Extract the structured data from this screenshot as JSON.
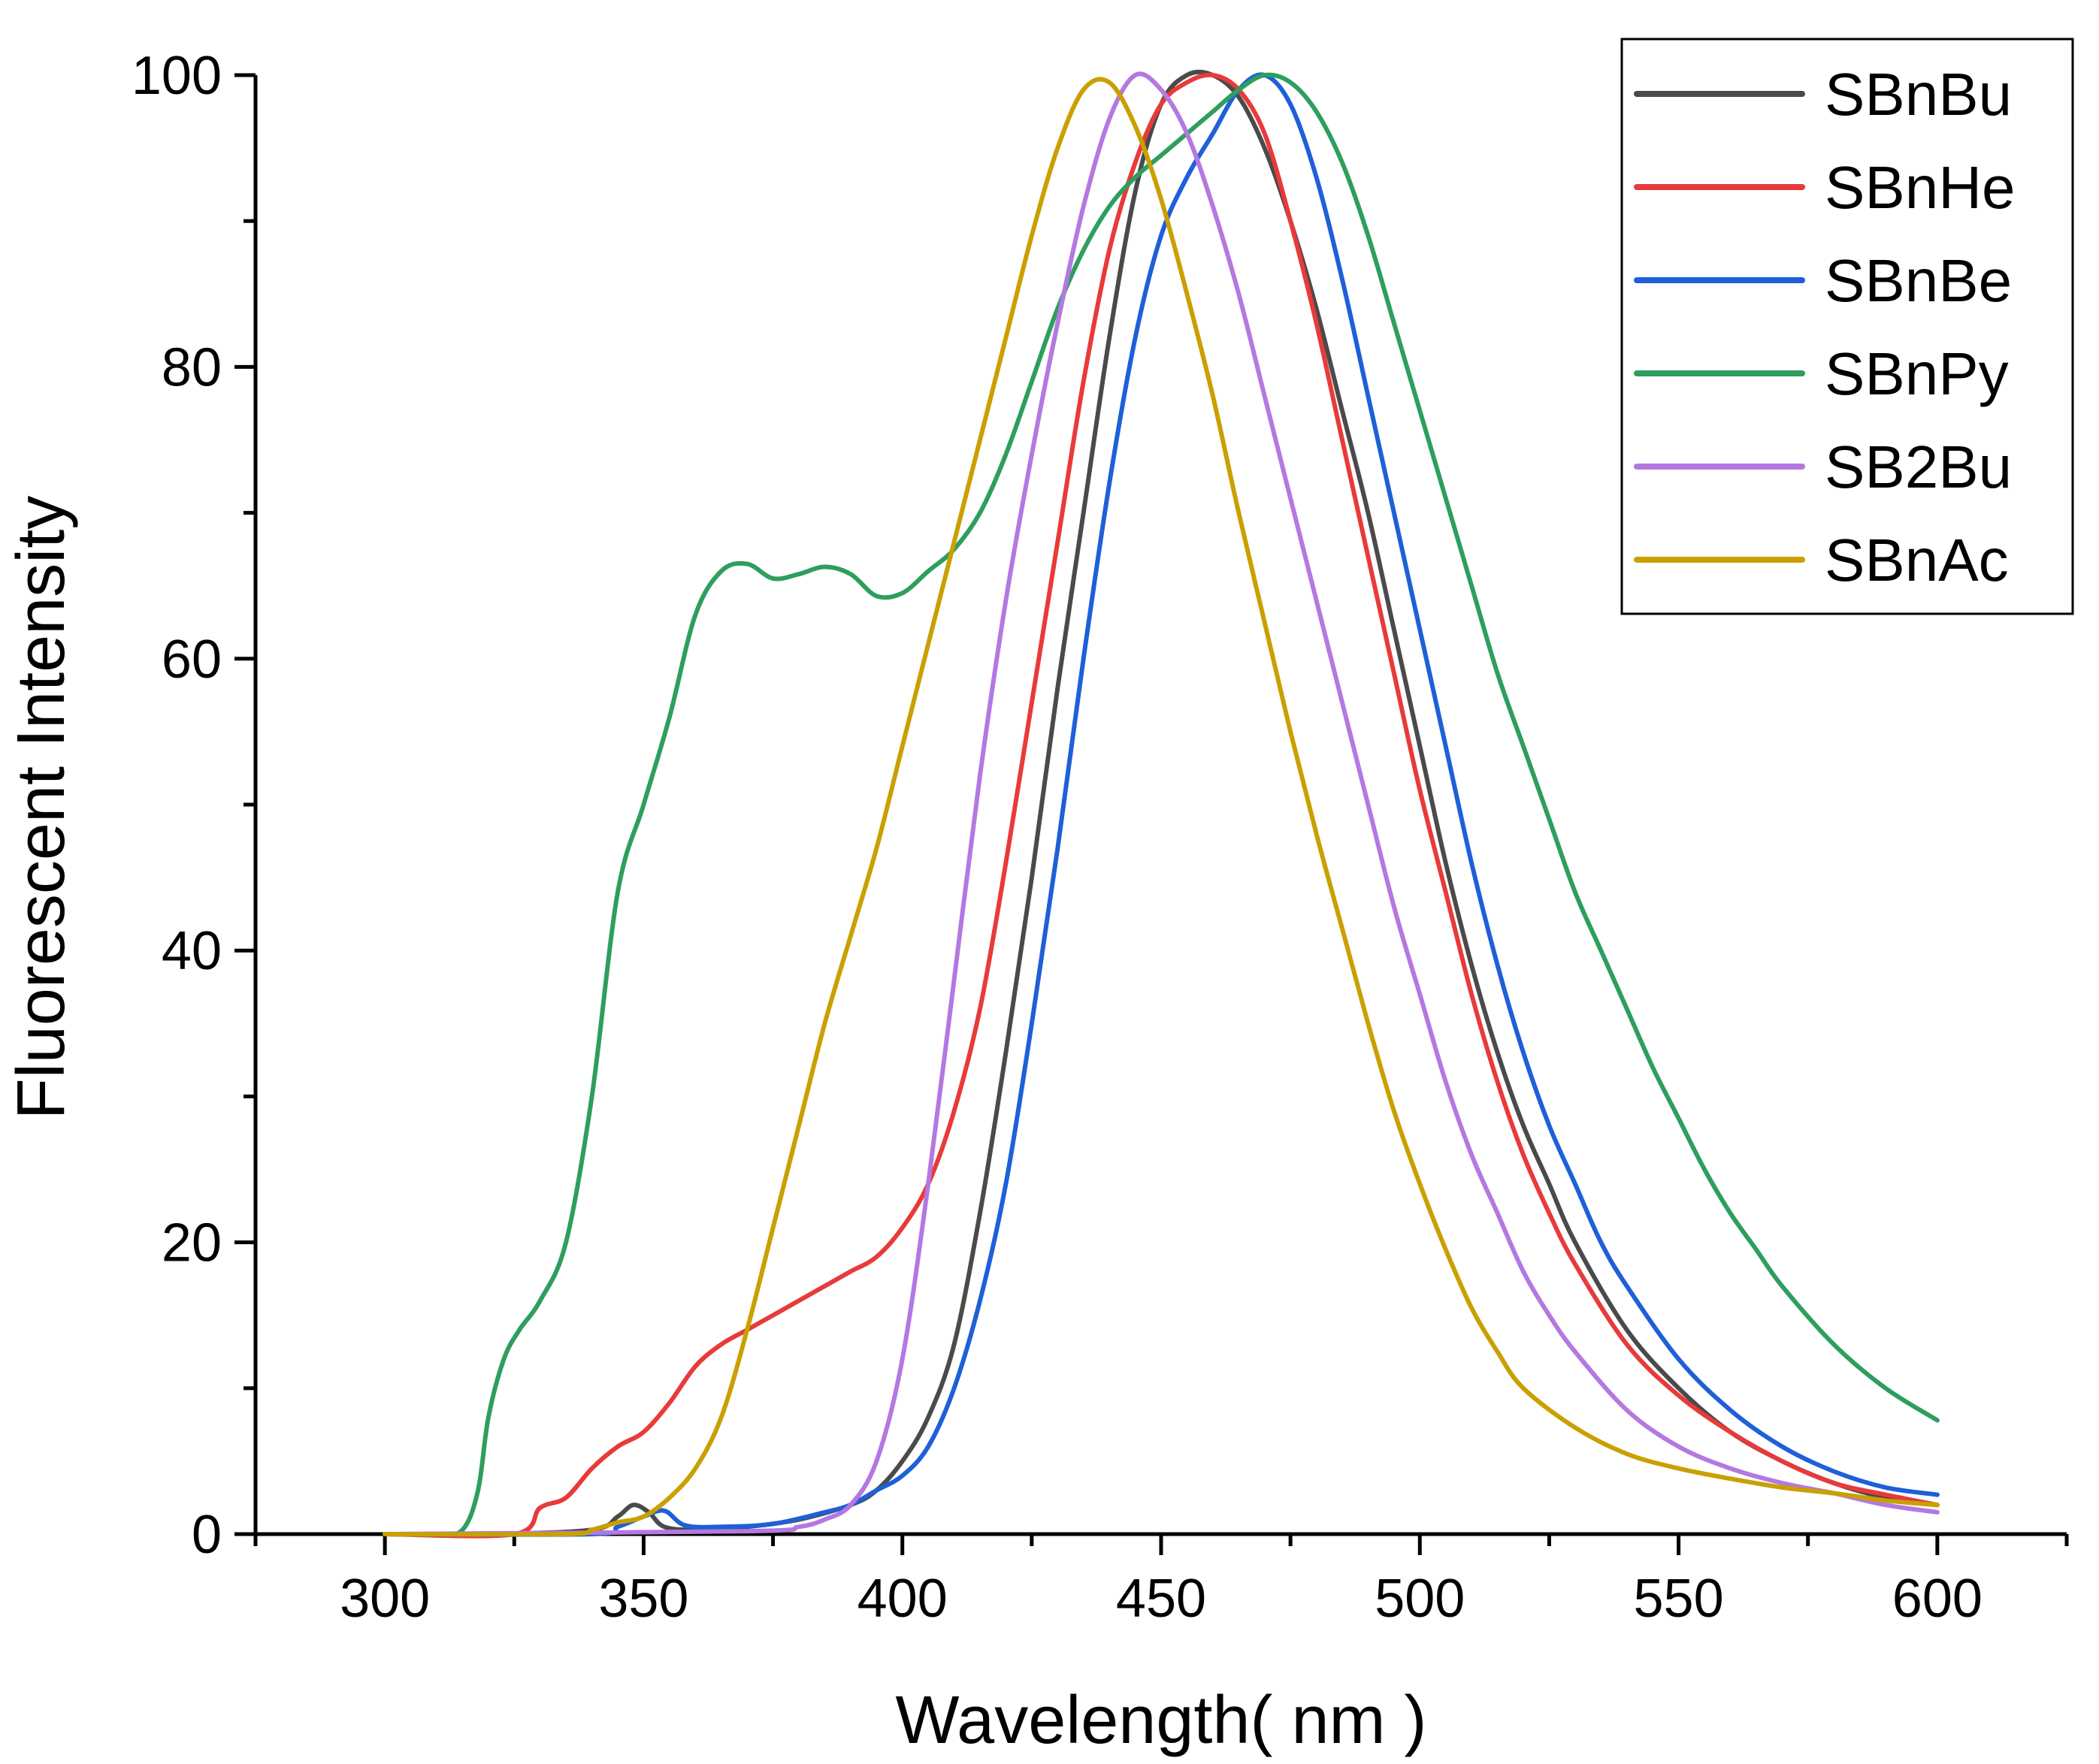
{
  "chart_data": {
    "type": "line",
    "title": "",
    "xlabel": "Wavelength( nm )",
    "ylabel": "Fluorescent Intensity",
    "xlim": [
      275,
      625
    ],
    "ylim": [
      0,
      100
    ],
    "xticks": [
      300,
      350,
      400,
      450,
      500,
      550,
      600
    ],
    "yticks": [
      0,
      20,
      40,
      60,
      80,
      100
    ],
    "xtick_labels": [
      "300",
      "350",
      "400",
      "450",
      "500",
      "550",
      "600"
    ],
    "ytick_labels": [
      "0",
      "20",
      "40",
      "60",
      "80",
      "100"
    ],
    "legend_position": "top-right",
    "grid": false,
    "series": [
      {
        "name": "SBnBu",
        "color": "#4a4a4a",
        "points": [
          [
            300,
            0
          ],
          [
            320,
            0
          ],
          [
            340,
            0.3
          ],
          [
            345,
            1.2
          ],
          [
            348,
            2
          ],
          [
            351,
            1.5
          ],
          [
            354,
            0.5
          ],
          [
            360,
            0.3
          ],
          [
            370,
            0.5
          ],
          [
            380,
            1
          ],
          [
            390,
            2
          ],
          [
            395,
            3
          ],
          [
            400,
            5
          ],
          [
            405,
            8
          ],
          [
            410,
            13
          ],
          [
            415,
            22
          ],
          [
            420,
            33
          ],
          [
            425,
            45
          ],
          [
            430,
            58
          ],
          [
            435,
            70
          ],
          [
            440,
            82
          ],
          [
            445,
            92
          ],
          [
            450,
            98
          ],
          [
            455,
            100
          ],
          [
            460,
            100
          ],
          [
            465,
            98.5
          ],
          [
            470,
            95
          ],
          [
            475,
            90
          ],
          [
            480,
            84
          ],
          [
            485,
            77
          ],
          [
            490,
            70
          ],
          [
            495,
            62
          ],
          [
            500,
            54
          ],
          [
            505,
            46
          ],
          [
            510,
            39
          ],
          [
            515,
            33
          ],
          [
            520,
            28
          ],
          [
            525,
            24
          ],
          [
            530,
            20
          ],
          [
            540,
            14
          ],
          [
            550,
            10
          ],
          [
            560,
            7
          ],
          [
            570,
            5
          ],
          [
            580,
            3.5
          ],
          [
            590,
            2.5
          ],
          [
            600,
            2
          ]
        ]
      },
      {
        "name": "SBnHe",
        "color": "#e83a3a",
        "points": [
          [
            300,
            0
          ],
          [
            325,
            0
          ],
          [
            330,
            1.8
          ],
          [
            335,
            2.5
          ],
          [
            340,
            4.5
          ],
          [
            345,
            6
          ],
          [
            350,
            7
          ],
          [
            355,
            9
          ],
          [
            360,
            11.5
          ],
          [
            365,
            13
          ],
          [
            370,
            14
          ],
          [
            375,
            15
          ],
          [
            380,
            16
          ],
          [
            385,
            17
          ],
          [
            390,
            18
          ],
          [
            395,
            19
          ],
          [
            400,
            21
          ],
          [
            405,
            24
          ],
          [
            410,
            29
          ],
          [
            415,
            36
          ],
          [
            420,
            46
          ],
          [
            425,
            57
          ],
          [
            430,
            68
          ],
          [
            435,
            79
          ],
          [
            440,
            88
          ],
          [
            445,
            94
          ],
          [
            450,
            98
          ],
          [
            455,
            99.5
          ],
          [
            460,
            100
          ],
          [
            465,
            99
          ],
          [
            470,
            96
          ],
          [
            475,
            90
          ],
          [
            480,
            83
          ],
          [
            485,
            75
          ],
          [
            490,
            67
          ],
          [
            495,
            59
          ],
          [
            500,
            51
          ],
          [
            505,
            44
          ],
          [
            510,
            37
          ],
          [
            515,
            31
          ],
          [
            520,
            26
          ],
          [
            525,
            22
          ],
          [
            530,
            18.5
          ],
          [
            540,
            13
          ],
          [
            550,
            9.5
          ],
          [
            560,
            7
          ],
          [
            570,
            5
          ],
          [
            580,
            3.5
          ],
          [
            590,
            2.7
          ],
          [
            600,
            2
          ]
        ]
      },
      {
        "name": "SBnBe",
        "color": "#1f5fd8",
        "points": [
          [
            300,
            0
          ],
          [
            340,
            0
          ],
          [
            345,
            0.5
          ],
          [
            350,
            1.2
          ],
          [
            354,
            1.6
          ],
          [
            358,
            0.6
          ],
          [
            365,
            0.5
          ],
          [
            375,
            0.7
          ],
          [
            385,
            1.5
          ],
          [
            390,
            2
          ],
          [
            395,
            3
          ],
          [
            400,
            4
          ],
          [
            405,
            6
          ],
          [
            410,
            10
          ],
          [
            415,
            16
          ],
          [
            420,
            24
          ],
          [
            425,
            35
          ],
          [
            430,
            47
          ],
          [
            435,
            60
          ],
          [
            440,
            72
          ],
          [
            445,
            82
          ],
          [
            450,
            89
          ],
          [
            455,
            93
          ],
          [
            460,
            96
          ],
          [
            465,
            99
          ],
          [
            470,
            100
          ],
          [
            475,
            98
          ],
          [
            480,
            93
          ],
          [
            485,
            86
          ],
          [
            490,
            78
          ],
          [
            495,
            70
          ],
          [
            500,
            62
          ],
          [
            505,
            54
          ],
          [
            510,
            46
          ],
          [
            515,
            39
          ],
          [
            520,
            33
          ],
          [
            525,
            28
          ],
          [
            530,
            24
          ],
          [
            535,
            20
          ],
          [
            540,
            17
          ],
          [
            550,
            12
          ],
          [
            560,
            8.5
          ],
          [
            570,
            6
          ],
          [
            580,
            4.3
          ],
          [
            590,
            3.2
          ],
          [
            600,
            2.7
          ]
        ]
      },
      {
        "name": "SBnPy",
        "color": "#2e9e5e",
        "points": [
          [
            300,
            0
          ],
          [
            310,
            0
          ],
          [
            315,
            0.3
          ],
          [
            318,
            3
          ],
          [
            320,
            8
          ],
          [
            323,
            12
          ],
          [
            326,
            14
          ],
          [
            330,
            16
          ],
          [
            335,
            20
          ],
          [
            340,
            30
          ],
          [
            345,
            44
          ],
          [
            350,
            50
          ],
          [
            355,
            56
          ],
          [
            360,
            63
          ],
          [
            365,
            66
          ],
          [
            370,
            66.5
          ],
          [
            375,
            65.5
          ],
          [
            380,
            65.8
          ],
          [
            385,
            66.3
          ],
          [
            390,
            65.8
          ],
          [
            395,
            64.3
          ],
          [
            400,
            64.5
          ],
          [
            405,
            66
          ],
          [
            410,
            67.5
          ],
          [
            415,
            70
          ],
          [
            420,
            74
          ],
          [
            425,
            79
          ],
          [
            430,
            84
          ],
          [
            435,
            88
          ],
          [
            440,
            91
          ],
          [
            445,
            93
          ],
          [
            450,
            94.5
          ],
          [
            455,
            96
          ],
          [
            460,
            97.5
          ],
          [
            465,
            99
          ],
          [
            470,
            100
          ],
          [
            475,
            99.5
          ],
          [
            480,
            97.5
          ],
          [
            485,
            94
          ],
          [
            490,
            89
          ],
          [
            495,
            83
          ],
          [
            500,
            77
          ],
          [
            505,
            71
          ],
          [
            510,
            65
          ],
          [
            515,
            59
          ],
          [
            520,
            54
          ],
          [
            525,
            49
          ],
          [
            530,
            44
          ],
          [
            535,
            40
          ],
          [
            540,
            36
          ],
          [
            545,
            32
          ],
          [
            550,
            28.5
          ],
          [
            555,
            25
          ],
          [
            560,
            22
          ],
          [
            565,
            19.5
          ],
          [
            570,
            17
          ],
          [
            580,
            13
          ],
          [
            590,
            10
          ],
          [
            600,
            7.8
          ]
        ]
      },
      {
        "name": "SB2Bu",
        "color": "#b478e0",
        "points": [
          [
            300,
            0
          ],
          [
            370,
            0.2
          ],
          [
            380,
            0.5
          ],
          [
            385,
            1
          ],
          [
            390,
            2
          ],
          [
            395,
            5
          ],
          [
            400,
            12
          ],
          [
            405,
            24
          ],
          [
            410,
            38
          ],
          [
            415,
            52
          ],
          [
            420,
            64
          ],
          [
            425,
            74
          ],
          [
            430,
            83
          ],
          [
            435,
            91
          ],
          [
            440,
            97
          ],
          [
            445,
            100
          ],
          [
            450,
            99
          ],
          [
            455,
            96
          ],
          [
            460,
            91
          ],
          [
            465,
            85
          ],
          [
            470,
            78
          ],
          [
            475,
            71
          ],
          [
            480,
            64
          ],
          [
            485,
            57
          ],
          [
            490,
            50
          ],
          [
            495,
            43
          ],
          [
            500,
            37
          ],
          [
            505,
            31
          ],
          [
            510,
            26
          ],
          [
            515,
            22
          ],
          [
            520,
            18
          ],
          [
            525,
            15
          ],
          [
            530,
            12.5
          ],
          [
            540,
            8.5
          ],
          [
            550,
            6
          ],
          [
            560,
            4.5
          ],
          [
            570,
            3.5
          ],
          [
            580,
            2.8
          ],
          [
            590,
            2
          ],
          [
            600,
            1.5
          ]
        ]
      },
      {
        "name": "SBnAc",
        "color": "#c9a000",
        "points": [
          [
            300,
            0
          ],
          [
            335,
            0
          ],
          [
            340,
            0.3
          ],
          [
            345,
            0.8
          ],
          [
            350,
            1.2
          ],
          [
            355,
            2.5
          ],
          [
            360,
            4.5
          ],
          [
            365,
            8
          ],
          [
            370,
            14
          ],
          [
            375,
            21
          ],
          [
            380,
            28
          ],
          [
            385,
            35
          ],
          [
            390,
            41
          ],
          [
            395,
            47
          ],
          [
            400,
            54
          ],
          [
            405,
            61
          ],
          [
            410,
            68
          ],
          [
            415,
            75
          ],
          [
            420,
            82
          ],
          [
            425,
            89
          ],
          [
            430,
            95
          ],
          [
            435,
            99
          ],
          [
            440,
            99.5
          ],
          [
            445,
            96.5
          ],
          [
            450,
            91.5
          ],
          [
            455,
            85
          ],
          [
            460,
            78
          ],
          [
            465,
            70
          ],
          [
            470,
            62.5
          ],
          [
            475,
            55
          ],
          [
            480,
            48
          ],
          [
            485,
            41.5
          ],
          [
            490,
            35
          ],
          [
            495,
            29
          ],
          [
            500,
            24
          ],
          [
            505,
            19.5
          ],
          [
            510,
            15.5
          ],
          [
            515,
            12.5
          ],
          [
            520,
            10
          ],
          [
            530,
            7.3
          ],
          [
            540,
            5.5
          ],
          [
            550,
            4.5
          ],
          [
            560,
            3.8
          ],
          [
            570,
            3.2
          ],
          [
            580,
            2.8
          ],
          [
            590,
            2.3
          ],
          [
            600,
            2
          ]
        ]
      }
    ]
  }
}
